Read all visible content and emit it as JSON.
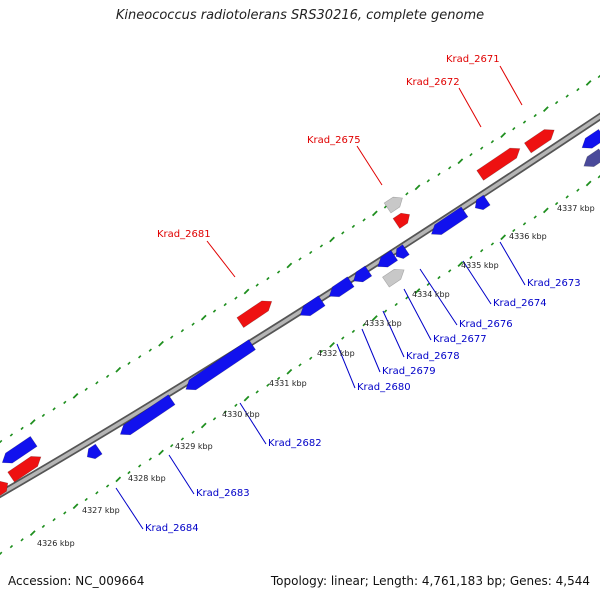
{
  "title": "Kineococcus radiotolerans SRS30216, complete genome",
  "footer": {
    "accession": "Accession: NC_009664",
    "stats": "Topology: linear; Length: 4,761,183 bp; Genes: 4,544"
  },
  "colors": {
    "forward_gene": "#ee1111",
    "reverse_gene": "#1111ee",
    "other_gene": "#c8c8c8",
    "dark_gene": "#4a4a9a",
    "backbone": "#8a8a8a",
    "tick": "#1f8f1f",
    "forward_label": "#e00000",
    "reverse_label": "#0000c8"
  },
  "kbp_labels": [
    {
      "id": "4326",
      "text": "4326 kbp"
    },
    {
      "id": "4327",
      "text": "4327 kbp"
    },
    {
      "id": "4328",
      "text": "4328 kbp"
    },
    {
      "id": "4329",
      "text": "4329 kbp"
    },
    {
      "id": "4330",
      "text": "4330 kbp"
    },
    {
      "id": "4331",
      "text": "4331 kbp"
    },
    {
      "id": "4332",
      "text": "4332 kbp"
    },
    {
      "id": "4333",
      "text": "4333 kbp"
    },
    {
      "id": "4334",
      "text": "4334 kbp"
    },
    {
      "id": "4335",
      "text": "4335 kbp"
    },
    {
      "id": "4336",
      "text": "4336 kbp"
    },
    {
      "id": "4337",
      "text": "4337 kbp"
    }
  ],
  "gene_labels": [
    {
      "id": "krad-2671",
      "text": "Krad_2671",
      "strand": "forward"
    },
    {
      "id": "krad-2672",
      "text": "Krad_2672",
      "strand": "forward"
    },
    {
      "id": "krad-2675",
      "text": "Krad_2675",
      "strand": "forward"
    },
    {
      "id": "krad-2681",
      "text": "Krad_2681",
      "strand": "forward"
    },
    {
      "id": "krad-2673",
      "text": "Krad_2673",
      "strand": "reverse"
    },
    {
      "id": "krad-2674",
      "text": "Krad_2674",
      "strand": "reverse"
    },
    {
      "id": "krad-2676",
      "text": "Krad_2676",
      "strand": "reverse"
    },
    {
      "id": "krad-2677",
      "text": "Krad_2677",
      "strand": "reverse"
    },
    {
      "id": "krad-2678",
      "text": "Krad_2678",
      "strand": "reverse"
    },
    {
      "id": "krad-2679",
      "text": "Krad_2679",
      "strand": "reverse"
    },
    {
      "id": "krad-2680",
      "text": "Krad_2680",
      "strand": "reverse"
    },
    {
      "id": "krad-2682",
      "text": "Krad_2682",
      "strand": "reverse"
    },
    {
      "id": "krad-2683",
      "text": "Krad_2683",
      "strand": "reverse"
    },
    {
      "id": "krad-2684",
      "text": "Krad_2684",
      "strand": "reverse"
    }
  ]
}
